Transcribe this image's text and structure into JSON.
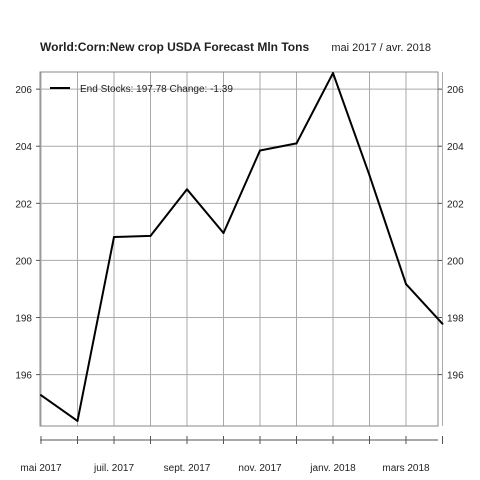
{
  "chart_data": {
    "type": "line",
    "title": "World:Corn:New crop USDA Forecast Mln Tons",
    "subtitle": "mai 2017 / avr. 2018",
    "x_labels": [
      "mai 2017",
      "juil. 2017",
      "sept. 2017",
      "nov. 2017",
      "janv. 2018",
      "mars 2018"
    ],
    "y_ticks": [
      "196",
      "198",
      "200",
      "202",
      "204",
      "206"
    ],
    "ylim": [
      194.2,
      206.6
    ],
    "grid": true,
    "legend_position": "top-left",
    "series": [
      {
        "label": "End Stocks: 197.78  Change: -1.39",
        "color": "#000000",
        "values": [
          195.28,
          194.38,
          200.82,
          200.86,
          202.49,
          200.96,
          203.85,
          204.1,
          206.56,
          202.98,
          199.17,
          197.78
        ]
      }
    ]
  }
}
